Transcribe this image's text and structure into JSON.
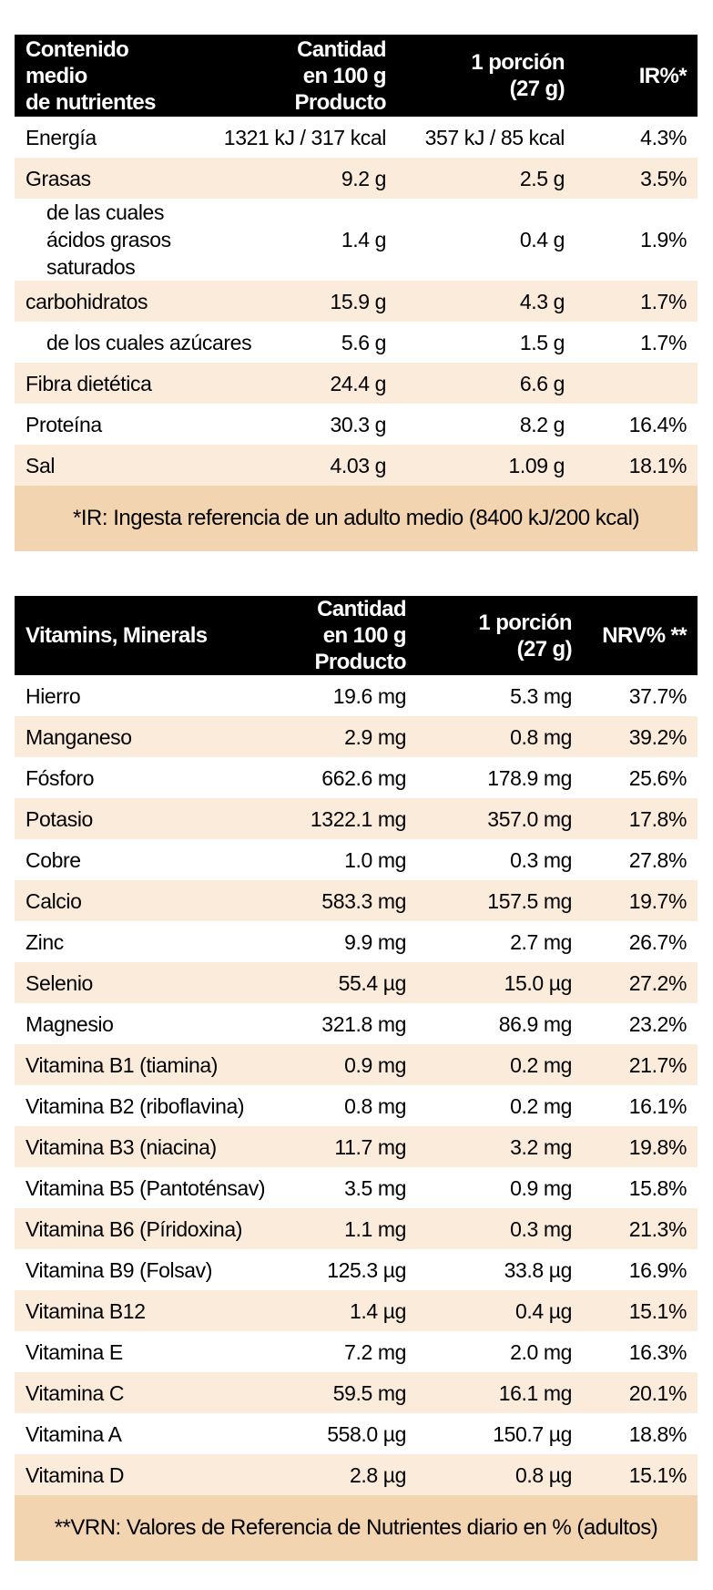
{
  "nutrition": {
    "headers": {
      "col1_line1": "Contenido medio",
      "col1_line2": "de nutrientes",
      "col2_line1": "Cantidad",
      "col2_line2": "en 100 g Producto",
      "col3_line1": "1 porción",
      "col3_line2": "(27 g)",
      "col4": "IR%*"
    },
    "rows": [
      {
        "name": "Energía",
        "per100": "1321 kJ / 317 kcal",
        "portion": "357 kJ / 85 kcal",
        "pct": "4.3%"
      },
      {
        "name": "Grasas",
        "per100": "9.2 g",
        "portion": "2.5 g",
        "pct": "3.5%"
      },
      {
        "name": "de las cuales ácidos grasos saturados",
        "per100": "1.4 g",
        "portion": "0.4 g",
        "pct": "1.9%"
      },
      {
        "name": "carbohidratos",
        "per100": "15.9 g",
        "portion": "4.3 g",
        "pct": "1.7%"
      },
      {
        "name": "de los cuales azúcares",
        "per100": "5.6 g",
        "portion": "1.5 g",
        "pct": "1.7%"
      },
      {
        "name": "Fibra dietética",
        "per100": "24.4 g",
        "portion": "6.6 g",
        "pct": ""
      },
      {
        "name": "Proteína",
        "per100": "30.3 g",
        "portion": "8.2 g",
        "pct": "16.4%"
      },
      {
        "name": "Sal",
        "per100": "4.03 g",
        "portion": "1.09 g",
        "pct": "18.1%"
      }
    ],
    "footnote": "*IR: Ingesta referencia de un adulto medio (8400 kJ/200 kcal)"
  },
  "vitamins": {
    "headers": {
      "col1": "Vitamins, Minerals",
      "col2_line1": "Cantidad",
      "col2_line2": "en 100 g Producto",
      "col3_line1": "1 porción",
      "col3_line2": "(27 g)",
      "col4": "NRV% **"
    },
    "rows": [
      {
        "name": "Hierro",
        "per100": "19.6 mg",
        "portion": "5.3 mg",
        "pct": "37.7%"
      },
      {
        "name": "Manganeso",
        "per100": "2.9 mg",
        "portion": "0.8 mg",
        "pct": "39.2%"
      },
      {
        "name": "Fósforo",
        "per100": "662.6 mg",
        "portion": "178.9 mg",
        "pct": "25.6%"
      },
      {
        "name": "Potasio",
        "per100": "1322.1 mg",
        "portion": "357.0 mg",
        "pct": "17.8%"
      },
      {
        "name": "Cobre",
        "per100": "1.0 mg",
        "portion": "0.3 mg",
        "pct": "27.8%"
      },
      {
        "name": "Calcio",
        "per100": "583.3 mg",
        "portion": "157.5 mg",
        "pct": "19.7%"
      },
      {
        "name": "Zinc",
        "per100": "9.9 mg",
        "portion": "2.7 mg",
        "pct": "26.7%"
      },
      {
        "name": "Selenio",
        "per100": "55.4 µg",
        "portion": "15.0 µg",
        "pct": "27.2%"
      },
      {
        "name": "Magnesio",
        "per100": "321.8 mg",
        "portion": "86.9 mg",
        "pct": "23.2%"
      },
      {
        "name": "Vitamina B1 (tiamina)",
        "per100": "0.9 mg",
        "portion": "0.2 mg",
        "pct": "21.7%"
      },
      {
        "name": "Vitamina B2 (riboflavina)",
        "per100": "0.8 mg",
        "portion": "0.2 mg",
        "pct": "16.1%"
      },
      {
        "name": "Vitamina B3 (niacina)",
        "per100": "11.7 mg",
        "portion": "3.2 mg",
        "pct": "19.8%"
      },
      {
        "name": "Vitamina B5 (Pantoténsav)",
        "per100": "3.5 mg",
        "portion": "0.9 mg",
        "pct": "15.8%"
      },
      {
        "name": "Vitamina B6 (Píridoxina)",
        "per100": "1.1 mg",
        "portion": "0.3 mg",
        "pct": "21.3%"
      },
      {
        "name": "Vitamina B9 (Folsav)",
        "per100": "125.3 µg",
        "portion": "33.8 µg",
        "pct": "16.9%"
      },
      {
        "name": "Vitamina B12",
        "per100": "1.4 µg",
        "portion": "0.4 µg",
        "pct": "15.1%"
      },
      {
        "name": "Vitamina E",
        "per100": "7.2 mg",
        "portion": "2.0 mg",
        "pct": "16.3%"
      },
      {
        "name": "Vitamina C",
        "per100": "59.5 mg",
        "portion": "16.1 mg",
        "pct": "20.1%"
      },
      {
        "name": "Vitamina A",
        "per100": "558.0 µg",
        "portion": "150.7 µg",
        "pct": "18.8%"
      },
      {
        "name": "Vitamina D",
        "per100": "2.8 µg",
        "portion": "0.8 µg",
        "pct": "15.1%"
      }
    ],
    "footnote": "**VRN: Valores de Referencia de Nutrientes diario en % (adultos)"
  },
  "colors": {
    "header_bg": "#000000",
    "header_text": "#ffffff",
    "shade_row": "#fbebdb",
    "footnote_bg": "#f3d4b0"
  }
}
